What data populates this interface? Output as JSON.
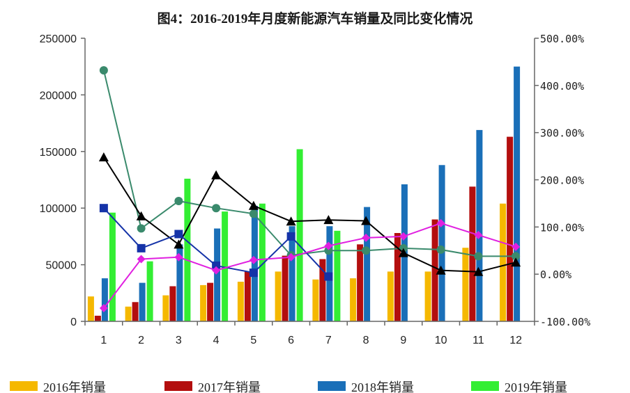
{
  "chart_data": {
    "type": "bar",
    "title": "图4：2016-2019年月度新能源汽车销量及同比变化情况",
    "categories": [
      "1",
      "2",
      "3",
      "4",
      "5",
      "6",
      "7",
      "8",
      "9",
      "10",
      "11",
      "12"
    ],
    "y_left": {
      "ylim": [
        0,
        250000
      ],
      "ticks": [
        "0",
        "50000",
        "100000",
        "150000",
        "200000",
        "250000"
      ]
    },
    "y_right": {
      "ylim": [
        -100,
        500
      ],
      "ticks": [
        "-100.00%",
        "0.00%",
        "100.00%",
        "200.00%",
        "300.00%",
        "400.00%",
        "500.00%"
      ]
    },
    "bar_series": [
      {
        "name": "2016年销量",
        "color": "#f5b800",
        "values": [
          22000,
          13000,
          23000,
          32000,
          35000,
          44000,
          37000,
          38000,
          44000,
          44000,
          65000,
          104000
        ]
      },
      {
        "name": "2017年销量",
        "color": "#b30e0e",
        "values": [
          5000,
          17000,
          31000,
          34000,
          44000,
          58000,
          55000,
          68000,
          78000,
          90000,
          119000,
          163000
        ]
      },
      {
        "name": "2018年销量",
        "color": "#1a6fb8",
        "values": [
          38000,
          34000,
          68000,
          82000,
          102000,
          84000,
          84000,
          101000,
          121000,
          138000,
          169000,
          225000
        ]
      },
      {
        "name": "2019年销量",
        "color": "#33ee33",
        "values": [
          96000,
          53000,
          126000,
          97000,
          104000,
          152000,
          80000,
          null,
          null,
          null,
          null,
          null
        ]
      }
    ],
    "line_series": [
      {
        "color": "#3a8a6c",
        "marker": "circle",
        "values": [
          432,
          97,
          155,
          140,
          128,
          40,
          50,
          50,
          55,
          52,
          38,
          38
        ]
      },
      {
        "color": "#000000",
        "marker": "triangle",
        "values": [
          248,
          123,
          63,
          210,
          145,
          112,
          115,
          113,
          45,
          8,
          5,
          25
        ]
      },
      {
        "color": "#1533a8",
        "marker": "square",
        "values": [
          140,
          55,
          85,
          18,
          3,
          80,
          -5,
          null,
          null,
          null,
          null,
          null
        ]
      },
      {
        "color": "#e020e0",
        "marker": "diamond",
        "values": [
          -72,
          32,
          36,
          8,
          30,
          36,
          60,
          77,
          80,
          108,
          83,
          58
        ]
      }
    ],
    "legend": {
      "placement": "bottom"
    }
  }
}
